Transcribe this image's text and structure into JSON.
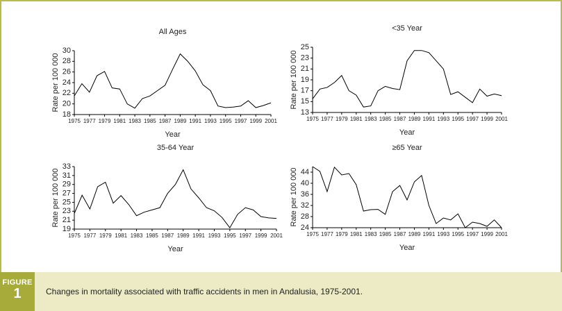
{
  "figure": {
    "label": "FIGURE",
    "number": "1",
    "caption": "Changes in mortality associated with traffic accidents in men in Andalusia, 1975-2001."
  },
  "chart_data": [
    {
      "type": "line",
      "title": "All Ages",
      "ylabel": "Rate per 100 000",
      "xlabel": "Year",
      "color": "#000000",
      "x": [
        1975,
        1976,
        1977,
        1978,
        1979,
        1980,
        1981,
        1982,
        1983,
        1984,
        1985,
        1986,
        1987,
        1988,
        1989,
        1990,
        1991,
        1992,
        1993,
        1994,
        1995,
        1996,
        1997,
        1998,
        1999,
        2000,
        2001
      ],
      "values": [
        21.5,
        23.8,
        22.2,
        25.3,
        26.1,
        23.0,
        22.8,
        20.0,
        19.2,
        21.0,
        21.5,
        22.5,
        23.5,
        26.5,
        29.4,
        28.0,
        26.2,
        23.6,
        22.5,
        19.6,
        19.3,
        19.4,
        19.6,
        20.6,
        19.3,
        19.7,
        20.2
      ],
      "xlim": [
        1975,
        2001
      ],
      "xticks": [
        1975,
        1977,
        1979,
        1981,
        1983,
        1985,
        1987,
        1989,
        1991,
        1993,
        1995,
        1997,
        1999,
        2001
      ],
      "ylim": [
        18,
        30
      ],
      "yticks": [
        18,
        20,
        22,
        24,
        26,
        28,
        30
      ]
    },
    {
      "type": "line",
      "title": "<35 Year",
      "ylabel": "Rate per 100 000",
      "xlabel": "Year",
      "color": "#000000",
      "x": [
        1975,
        1976,
        1977,
        1978,
        1979,
        1980,
        1981,
        1982,
        1983,
        1984,
        1985,
        1986,
        1987,
        1988,
        1989,
        1990,
        1991,
        1992,
        1993,
        1994,
        1995,
        1996,
        1997,
        1998,
        1999,
        2000,
        2001
      ],
      "values": [
        15.5,
        17.3,
        17.6,
        18.5,
        19.8,
        17.0,
        16.2,
        14.0,
        14.2,
        17.0,
        17.8,
        17.4,
        17.2,
        22.5,
        24.4,
        24.4,
        24.0,
        22.5,
        21.0,
        16.3,
        16.8,
        15.8,
        14.8,
        17.3,
        16.0,
        16.4,
        16.1
      ],
      "xlim": [
        1975,
        2001
      ],
      "xticks": [
        1975,
        1977,
        1979,
        1981,
        1983,
        1985,
        1987,
        1989,
        1991,
        1993,
        1995,
        1997,
        1999,
        2001
      ],
      "ylim": [
        13,
        25
      ],
      "yticks": [
        13,
        15,
        17,
        19,
        21,
        23,
        25
      ]
    },
    {
      "type": "line",
      "title": "35-64 Year",
      "ylabel": "Rate per 100 000",
      "xlabel": "Year",
      "color": "#000000",
      "x": [
        1975,
        1976,
        1977,
        1978,
        1979,
        1980,
        1981,
        1982,
        1983,
        1984,
        1985,
        1986,
        1987,
        1988,
        1989,
        1990,
        1991,
        1992,
        1993,
        1994,
        1995,
        1996,
        1997,
        1998,
        1999,
        2000,
        2001
      ],
      "values": [
        22.5,
        26.6,
        23.5,
        28.5,
        29.5,
        24.8,
        26.5,
        24.5,
        22.0,
        22.8,
        23.3,
        23.8,
        27.0,
        29.0,
        32.3,
        28.0,
        26.0,
        23.8,
        23.1,
        21.6,
        19.3,
        22.3,
        23.8,
        23.3,
        21.8,
        21.5,
        21.4
      ],
      "xlim": [
        1975,
        2001
      ],
      "xticks": [
        1975,
        1977,
        1979,
        1981,
        1983,
        1985,
        1987,
        1989,
        1991,
        1993,
        1995,
        1997,
        1999,
        2001
      ],
      "ylim": [
        19,
        33
      ],
      "yticks": [
        19,
        21,
        23,
        25,
        27,
        29,
        31,
        33
      ]
    },
    {
      "type": "line",
      "title": "≥65 Year",
      "ylabel": "Rate per 100 000",
      "xlabel": "Year",
      "color": "#000000",
      "x": [
        1975,
        1976,
        1977,
        1978,
        1979,
        1980,
        1981,
        1982,
        1983,
        1984,
        1985,
        1986,
        1987,
        1988,
        1989,
        1990,
        1991,
        1992,
        1993,
        1994,
        1995,
        1996,
        1997,
        1998,
        1999,
        2000,
        2001
      ],
      "values": [
        46.0,
        44.3,
        37.0,
        45.8,
        43.0,
        43.5,
        39.5,
        30.0,
        30.5,
        30.6,
        28.8,
        37.0,
        39.2,
        34.0,
        40.5,
        42.8,
        32.0,
        25.5,
        27.5,
        26.8,
        29.0,
        24.0,
        26.0,
        25.5,
        24.5,
        26.8,
        24.0
      ],
      "xlim": [
        1975,
        2001
      ],
      "xticks": [
        1975,
        1977,
        1979,
        1981,
        1983,
        1985,
        1987,
        1989,
        1991,
        1993,
        1995,
        1997,
        1999,
        2001
      ],
      "ylim": [
        24,
        46
      ],
      "yticks": [
        24,
        28,
        32,
        36,
        40,
        44
      ]
    }
  ]
}
